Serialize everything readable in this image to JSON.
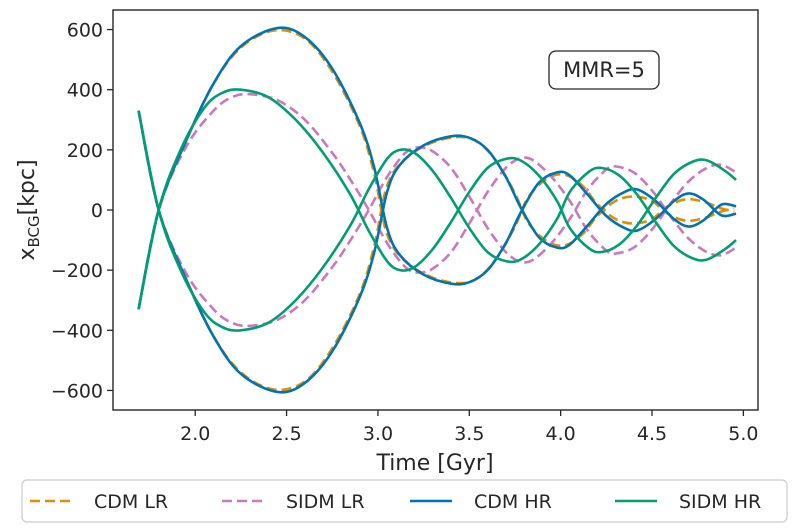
{
  "chart_data": {
    "type": "line",
    "title": "",
    "xlabel": "Time [Gyr]",
    "ylabel_main": "x",
    "ylabel_sub": "BCG",
    "ylabel_unit": "[kpc]",
    "xlim": [
      1.55,
      5.08
    ],
    "ylim": [
      -665,
      665
    ],
    "xticks": [
      2.0,
      2.5,
      3.0,
      3.5,
      4.0,
      4.5,
      5.0
    ],
    "xtick_labels": [
      "2.0",
      "2.5",
      "3.0",
      "3.5",
      "4.0",
      "4.5",
      "5.0"
    ],
    "yticks": [
      -600,
      -400,
      -200,
      0,
      200,
      400,
      600
    ],
    "ytick_labels": [
      "−600",
      "−400",
      "−200",
      "0",
      "200",
      "400",
      "600"
    ],
    "annotation": "MMR=5",
    "legend_placement": "below",
    "series": [
      {
        "name": "CDM LR",
        "color": "#de8f05",
        "dash": true,
        "sign": 1,
        "points": [
          [
            1.69,
            -330
          ],
          [
            1.8,
            0
          ],
          [
            1.95,
            230
          ],
          [
            2.1,
            420
          ],
          [
            2.25,
            540
          ],
          [
            2.43,
            597
          ],
          [
            2.6,
            570
          ],
          [
            2.75,
            460
          ],
          [
            2.9,
            280
          ],
          [
            2.98,
            120
          ],
          [
            3.05,
            -80
          ],
          [
            3.15,
            -170
          ],
          [
            3.3,
            -225
          ],
          [
            3.45,
            -243
          ],
          [
            3.55,
            -225
          ],
          [
            3.65,
            -160
          ],
          [
            3.75,
            -55
          ],
          [
            3.82,
            40
          ],
          [
            3.92,
            102
          ],
          [
            4.02,
            118
          ],
          [
            4.12,
            80
          ],
          [
            4.2,
            20
          ],
          [
            4.3,
            -30
          ],
          [
            4.4,
            -45
          ],
          [
            4.5,
            -30
          ],
          [
            4.58,
            10
          ],
          [
            4.68,
            35
          ],
          [
            4.78,
            28
          ],
          [
            4.88,
            5
          ],
          [
            4.95,
            -5
          ]
        ]
      },
      {
        "name": "SIDM LR",
        "color": "#cc78bc",
        "dash": true,
        "sign": 1,
        "points": [
          [
            1.69,
            -330
          ],
          [
            1.8,
            0
          ],
          [
            1.95,
            210
          ],
          [
            2.1,
            330
          ],
          [
            2.2,
            375
          ],
          [
            2.3,
            385
          ],
          [
            2.45,
            365
          ],
          [
            2.6,
            300
          ],
          [
            2.75,
            190
          ],
          [
            2.85,
            100
          ],
          [
            2.95,
            0
          ],
          [
            3.05,
            -110
          ],
          [
            3.15,
            -190
          ],
          [
            3.22,
            -208
          ],
          [
            3.3,
            -195
          ],
          [
            3.4,
            -140
          ],
          [
            3.5,
            -45
          ],
          [
            3.6,
            60
          ],
          [
            3.7,
            140
          ],
          [
            3.78,
            172
          ],
          [
            3.85,
            165
          ],
          [
            3.95,
            110
          ],
          [
            4.05,
            30
          ],
          [
            4.15,
            -70
          ],
          [
            4.25,
            -135
          ],
          [
            4.3,
            -145
          ],
          [
            4.4,
            -125
          ],
          [
            4.5,
            -65
          ],
          [
            4.6,
            20
          ],
          [
            4.7,
            95
          ],
          [
            4.8,
            140
          ],
          [
            4.88,
            150
          ],
          [
            4.96,
            125
          ]
        ]
      },
      {
        "name": "CDM HR",
        "color": "#0173b2",
        "dash": false,
        "sign": 1,
        "points": [
          [
            1.69,
            -330
          ],
          [
            1.8,
            0
          ],
          [
            1.95,
            230
          ],
          [
            2.1,
            420
          ],
          [
            2.25,
            545
          ],
          [
            2.45,
            605
          ],
          [
            2.6,
            575
          ],
          [
            2.75,
            470
          ],
          [
            2.9,
            290
          ],
          [
            2.98,
            140
          ],
          [
            3.05,
            -60
          ],
          [
            3.12,
            -150
          ],
          [
            3.25,
            -215
          ],
          [
            3.4,
            -245
          ],
          [
            3.5,
            -240
          ],
          [
            3.6,
            -200
          ],
          [
            3.7,
            -110
          ],
          [
            3.78,
            -10
          ],
          [
            3.88,
            90
          ],
          [
            3.98,
            125
          ],
          [
            4.05,
            115
          ],
          [
            4.15,
            50
          ],
          [
            4.25,
            -20
          ],
          [
            4.35,
            -60
          ],
          [
            4.42,
            -68
          ],
          [
            4.52,
            -30
          ],
          [
            4.62,
            30
          ],
          [
            4.7,
            55
          ],
          [
            4.78,
            35
          ],
          [
            4.86,
            -10
          ],
          [
            4.9,
            -20
          ],
          [
            4.96,
            -12
          ]
        ]
      },
      {
        "name": "SIDM HR",
        "color": "#029e73",
        "dash": false,
        "sign": 1,
        "points": [
          [
            1.69,
            -330
          ],
          [
            1.8,
            0
          ],
          [
            1.92,
            200
          ],
          [
            2.05,
            340
          ],
          [
            2.15,
            390
          ],
          [
            2.25,
            400
          ],
          [
            2.4,
            375
          ],
          [
            2.55,
            300
          ],
          [
            2.7,
            190
          ],
          [
            2.85,
            50
          ],
          [
            2.95,
            -70
          ],
          [
            3.05,
            -170
          ],
          [
            3.12,
            -200
          ],
          [
            3.2,
            -190
          ],
          [
            3.3,
            -130
          ],
          [
            3.4,
            -40
          ],
          [
            3.5,
            60
          ],
          [
            3.6,
            140
          ],
          [
            3.7,
            170
          ],
          [
            3.78,
            165
          ],
          [
            3.88,
            115
          ],
          [
            3.98,
            30
          ],
          [
            4.05,
            -60
          ],
          [
            4.15,
            -125
          ],
          [
            4.22,
            -140
          ],
          [
            4.32,
            -115
          ],
          [
            4.42,
            -50
          ],
          [
            4.52,
            40
          ],
          [
            4.62,
            120
          ],
          [
            4.72,
            160
          ],
          [
            4.8,
            165
          ],
          [
            4.9,
            130
          ],
          [
            4.96,
            100
          ]
        ]
      }
    ]
  }
}
